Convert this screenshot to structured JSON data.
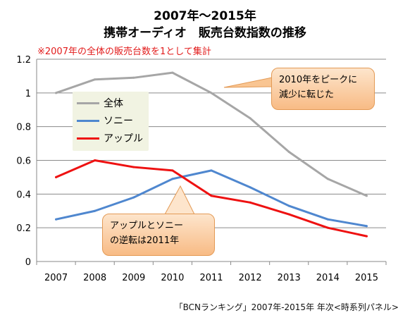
{
  "title_line1": "2007年〜2015年",
  "title_line2": "携帯オーディオ　販売台数指数の推移",
  "note": "※2007年の全体の販売台数を1として集計",
  "source": "「BCNランキング」2007年-2015年 年次<時系列パネル>",
  "callouts": {
    "peak": {
      "line1": "2010年をピークに",
      "line2": "減少に転じた"
    },
    "crossover": {
      "line1": "アップルとソニー",
      "line2": "の逆転は2011年"
    }
  },
  "chart_data": {
    "type": "line",
    "categories": [
      "2007",
      "2008",
      "2009",
      "2010",
      "2011",
      "2012",
      "2013",
      "2014",
      "2015"
    ],
    "ylim": [
      0,
      1.2
    ],
    "yticks": [
      0,
      0.2,
      0.4,
      0.6,
      0.8,
      1,
      1.2
    ],
    "grid": true,
    "legend_position": "upper-left",
    "series": [
      {
        "name": "全体",
        "color": "#a6a6a6",
        "values": [
          1.0,
          1.08,
          1.09,
          1.12,
          1.0,
          0.85,
          0.65,
          0.49,
          0.39
        ]
      },
      {
        "name": "ソニー",
        "color": "#4f87cf",
        "values": [
          0.25,
          0.3,
          0.38,
          0.49,
          0.54,
          0.44,
          0.33,
          0.25,
          0.21
        ]
      },
      {
        "name": "アップル",
        "color": "#ee1111",
        "values": [
          0.5,
          0.6,
          0.56,
          0.54,
          0.39,
          0.35,
          0.28,
          0.2,
          0.15
        ]
      }
    ]
  }
}
